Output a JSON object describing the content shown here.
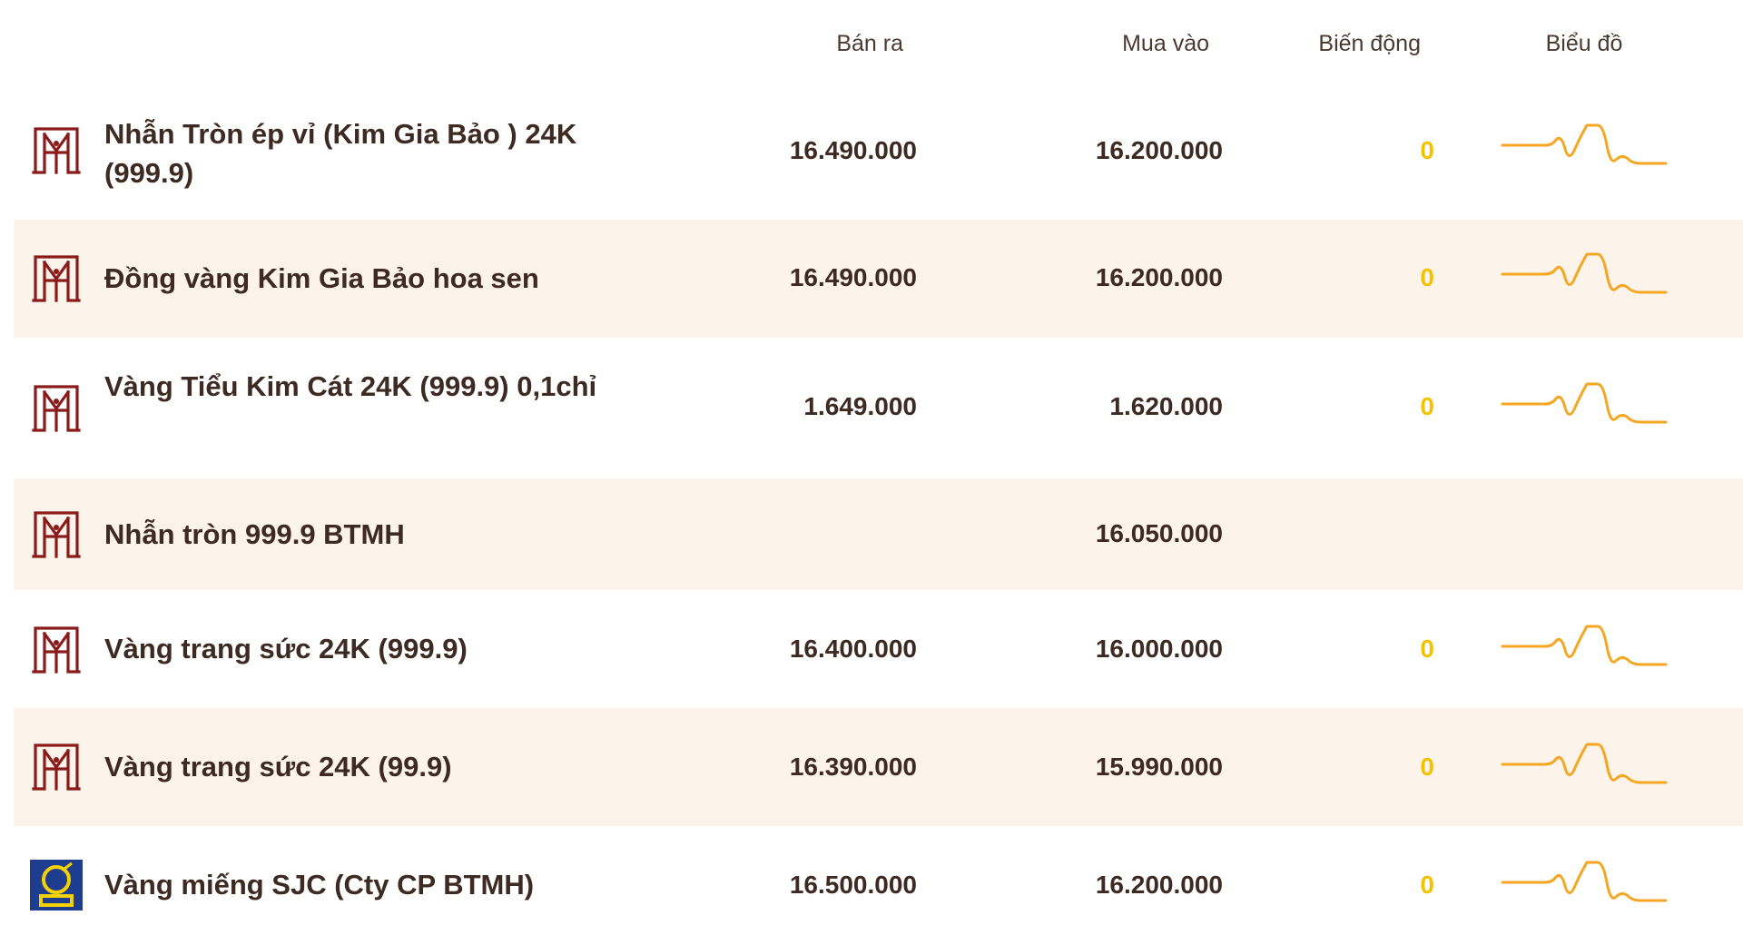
{
  "header": {
    "sell_label": "Bán ra",
    "buy_label": "Mua vào",
    "change_label": "Biến động",
    "chart_label": "Biểu đồ"
  },
  "colors": {
    "row_alt_bg": "#fcf4ea",
    "change_color": "#f2c300",
    "sparkline_color": "#f5a623",
    "btmh_logo_color": "#8b1a1a",
    "sjc_logo_bg": "#1f3d8f",
    "sjc_logo_accent": "#f6d100"
  },
  "rows": [
    {
      "logo": "btmh-logo-icon",
      "name": "Nhẫn Tròn ép vỉ (Kim Gia Bảo ) 24K (999.9)",
      "sell": "16.490.000",
      "buy": "16.200.000",
      "change": "0",
      "has_chart": true
    },
    {
      "logo": "btmh-logo-icon",
      "name": "Đồng vàng Kim Gia Bảo hoa sen",
      "sell": "16.490.000",
      "buy": "16.200.000",
      "change": "0",
      "has_chart": true
    },
    {
      "logo": "btmh-logo-icon",
      "name": "Vàng Tiểu Kim Cát 24K (999.9) 0,1chỉ",
      "sell": "1.649.000",
      "buy": "1.620.000",
      "change": "0",
      "has_chart": true
    },
    {
      "logo": "btmh-logo-icon",
      "name": "Nhẫn tròn 999.9 BTMH",
      "sell": "",
      "buy": "16.050.000",
      "change": "",
      "has_chart": false
    },
    {
      "logo": "btmh-logo-icon",
      "name": "Vàng trang sức 24K (999.9)",
      "sell": "16.400.000",
      "buy": "16.000.000",
      "change": "0",
      "has_chart": true
    },
    {
      "logo": "btmh-logo-icon",
      "name": "Vàng trang sức 24K (99.9)",
      "sell": "16.390.000",
      "buy": "15.990.000",
      "change": "0",
      "has_chart": true
    },
    {
      "logo": "sjc-logo-icon",
      "name": "Vàng miếng SJC (Cty CP BTMH)",
      "sell": "16.500.000",
      "buy": "16.200.000",
      "change": "0",
      "has_chart": true
    }
  ]
}
